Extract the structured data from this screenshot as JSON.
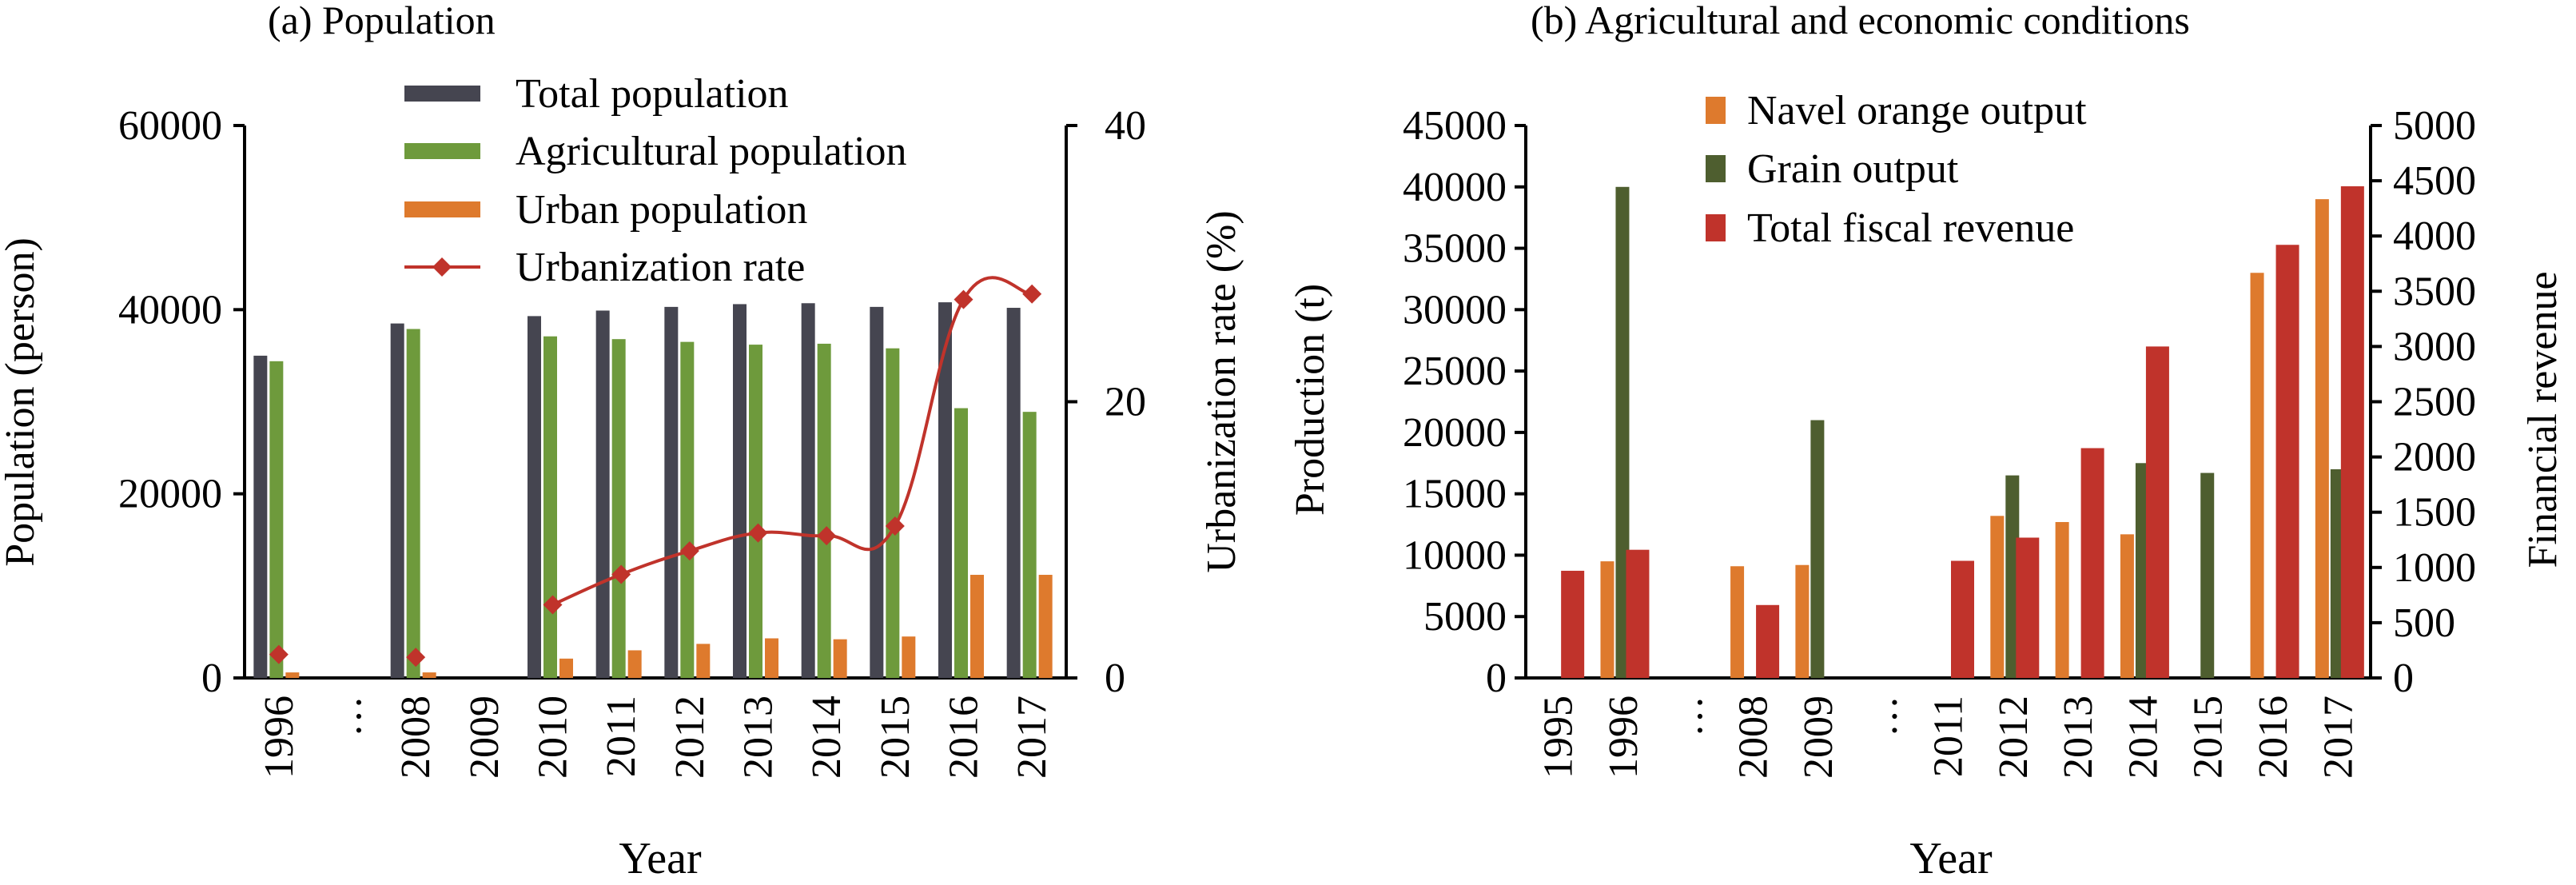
{
  "chart_data": [
    {
      "id": "a",
      "type": "bar",
      "title": "(a) Population",
      "xlabel": "Year",
      "ylabel": "Population (person)",
      "y2label": "Urbanization rate (%)",
      "ylim": [
        0,
        60000
      ],
      "yticks": [
        0,
        20000,
        40000,
        60000
      ],
      "y2lim": [
        0,
        40
      ],
      "y2ticks": [
        0,
        20,
        40
      ],
      "categories": [
        "1996",
        "…",
        "2008",
        "2009",
        "2010",
        "2011",
        "2012",
        "2013",
        "2014",
        "2015",
        "2016",
        "2017"
      ],
      "legend_position": "top-center",
      "series": [
        {
          "name": "Total population",
          "type": "bar",
          "axis": "left",
          "color": "#454550",
          "values": [
            35000,
            null,
            38500,
            null,
            39300,
            39900,
            40300,
            40600,
            40700,
            40300,
            40800,
            40200
          ]
        },
        {
          "name": "Agricultural population",
          "type": "bar",
          "axis": "left",
          "color": "#6e9a3c",
          "values": [
            34400,
            null,
            37900,
            null,
            37100,
            36800,
            36500,
            36200,
            36300,
            35800,
            29300,
            28900
          ]
        },
        {
          "name": "Urban population",
          "type": "bar",
          "axis": "left",
          "color": "#de7a2d",
          "values": [
            600,
            null,
            600,
            null,
            2100,
            3000,
            3700,
            4300,
            4200,
            4500,
            11200,
            11200
          ]
        },
        {
          "name": "Urbanization rate",
          "type": "line",
          "axis": "right",
          "color": "#c0332b",
          "marker": "diamond",
          "values": [
            1.7,
            null,
            1.5,
            null,
            5.3,
            7.5,
            9.2,
            10.5,
            10.3,
            11.0,
            27.4,
            27.8
          ]
        }
      ]
    },
    {
      "id": "b",
      "type": "bar",
      "title": "(b) Agricultural and economic conditions",
      "xlabel": "Year",
      "ylabel": "Production (t)",
      "y2label": "Financial revenue",
      "ylim": [
        0,
        45000
      ],
      "yticks": [
        0,
        5000,
        10000,
        15000,
        20000,
        25000,
        30000,
        35000,
        40000,
        45000
      ],
      "y2lim": [
        0,
        5000
      ],
      "y2ticks": [
        0,
        500,
        1000,
        1500,
        2000,
        2500,
        3000,
        3500,
        4000,
        4500,
        5000
      ],
      "categories": [
        "1995",
        "1996",
        "…",
        "2008",
        "2009",
        "…",
        "2011",
        "2012",
        "2013",
        "2014",
        "2015",
        "2016",
        "2017"
      ],
      "legend_position": "top-center",
      "series": [
        {
          "name": "Navel orange output",
          "type": "bar",
          "axis": "left",
          "color": "#de7a2d",
          "values": [
            null,
            9500,
            null,
            9100,
            9200,
            null,
            null,
            13200,
            12700,
            11700,
            null,
            33000,
            39000
          ]
        },
        {
          "name": "Grain output",
          "type": "bar",
          "axis": "left",
          "color": "#4e5e2f",
          "values": [
            null,
            40000,
            null,
            null,
            21000,
            null,
            null,
            16500,
            null,
            17500,
            16700,
            null,
            17000
          ]
        },
        {
          "name": "Total fiscal revenue",
          "type": "bar",
          "axis": "right",
          "color": "#c0332b",
          "values": [
            970,
            1160,
            null,
            660,
            null,
            null,
            1060,
            1270,
            2080,
            3000,
            null,
            3920,
            4450
          ]
        }
      ]
    }
  ]
}
